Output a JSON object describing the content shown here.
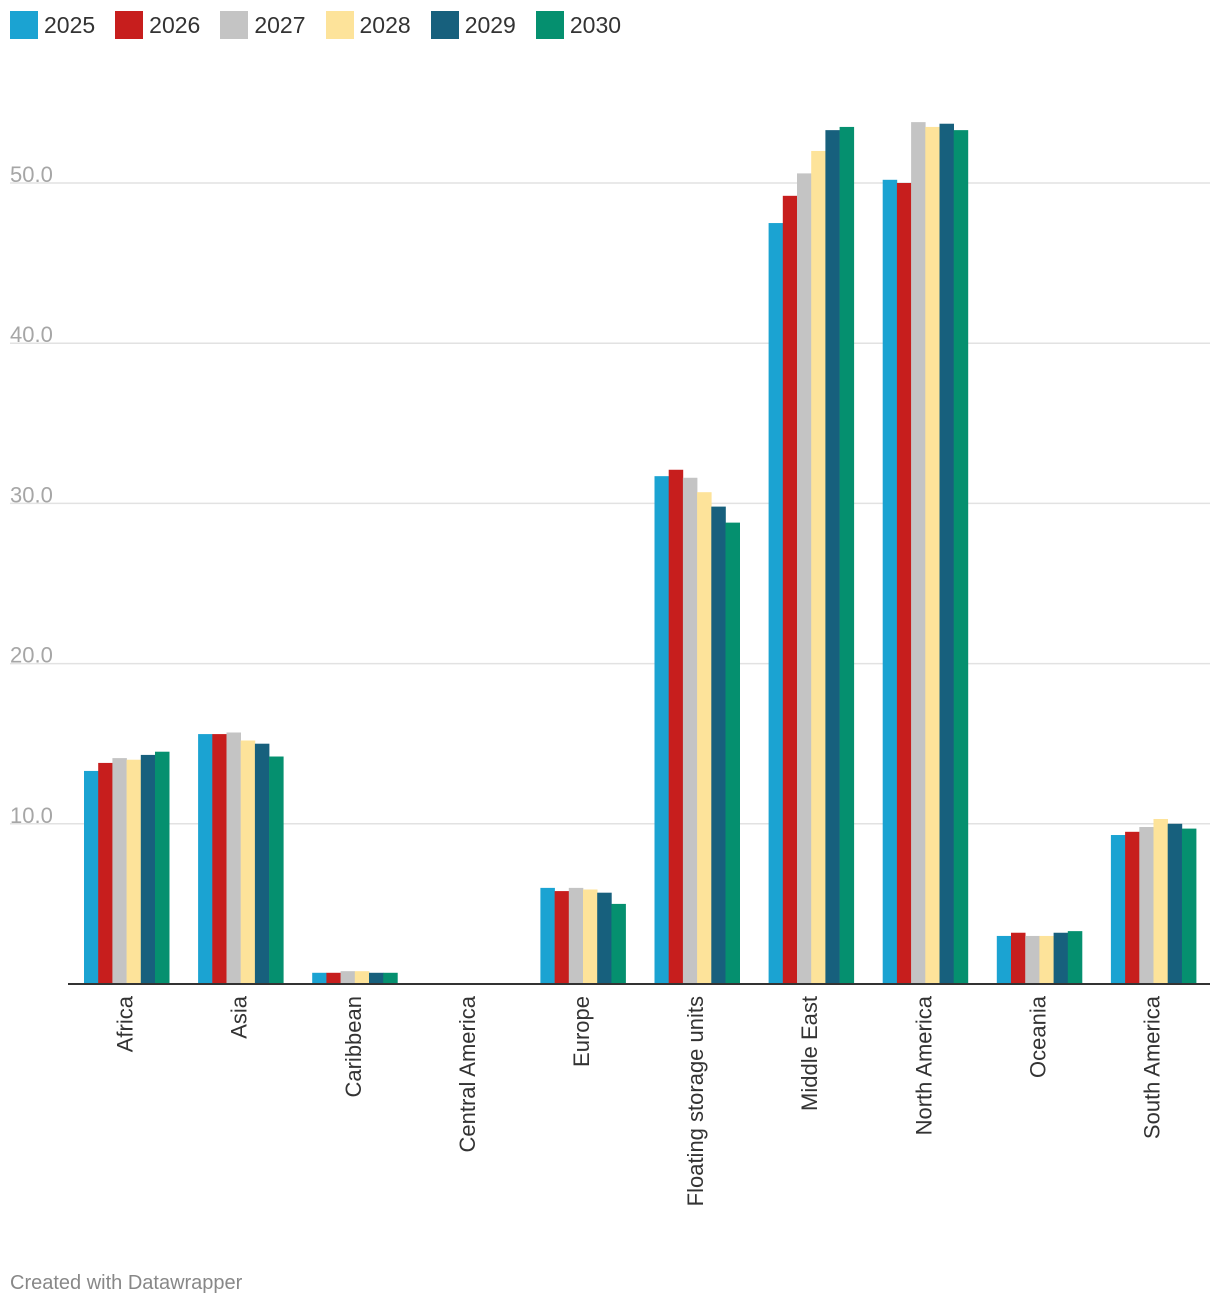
{
  "chart_data": {
    "type": "bar",
    "title": "",
    "xlabel": "",
    "ylabel": "",
    "ylim": [
      0,
      56
    ],
    "yticks": [
      10,
      20,
      30,
      40,
      50
    ],
    "ytick_labels": [
      "10.0",
      "20.0",
      "30.0",
      "40.0",
      "50.0"
    ],
    "categories": [
      "Africa",
      "Asia",
      "Caribbean",
      "Central America",
      "Europe",
      "Floating storage units",
      "Middle East",
      "North America",
      "Oceania",
      "South America"
    ],
    "series": [
      {
        "name": "2025",
        "color": "#1ba3d2",
        "values": [
          13.3,
          15.6,
          0.7,
          0,
          6.0,
          31.7,
          47.5,
          50.2,
          3.0,
          9.3
        ]
      },
      {
        "name": "2026",
        "color": "#c71e1d",
        "values": [
          13.8,
          15.6,
          0.7,
          0,
          5.8,
          32.1,
          49.2,
          50.0,
          3.2,
          9.5
        ]
      },
      {
        "name": "2027",
        "color": "#c4c4c4",
        "values": [
          14.1,
          15.7,
          0.8,
          0,
          6.0,
          31.6,
          50.6,
          53.8,
          3.0,
          9.8
        ]
      },
      {
        "name": "2028",
        "color": "#fde39a",
        "values": [
          14.0,
          15.2,
          0.8,
          0,
          5.9,
          30.7,
          52.0,
          53.5,
          3.0,
          10.3
        ]
      },
      {
        "name": "2029",
        "color": "#17607d",
        "values": [
          14.3,
          15.0,
          0.7,
          0,
          5.7,
          29.8,
          53.3,
          53.7,
          3.2,
          10.0
        ]
      },
      {
        "name": "2030",
        "color": "#05906f",
        "values": [
          14.5,
          14.2,
          0.7,
          0,
          5.0,
          28.8,
          53.5,
          53.3,
          3.3,
          9.7
        ]
      }
    ],
    "legend_position": "top-left",
    "grid": true
  },
  "footer": {
    "credit": "Created with Datawrapper"
  }
}
